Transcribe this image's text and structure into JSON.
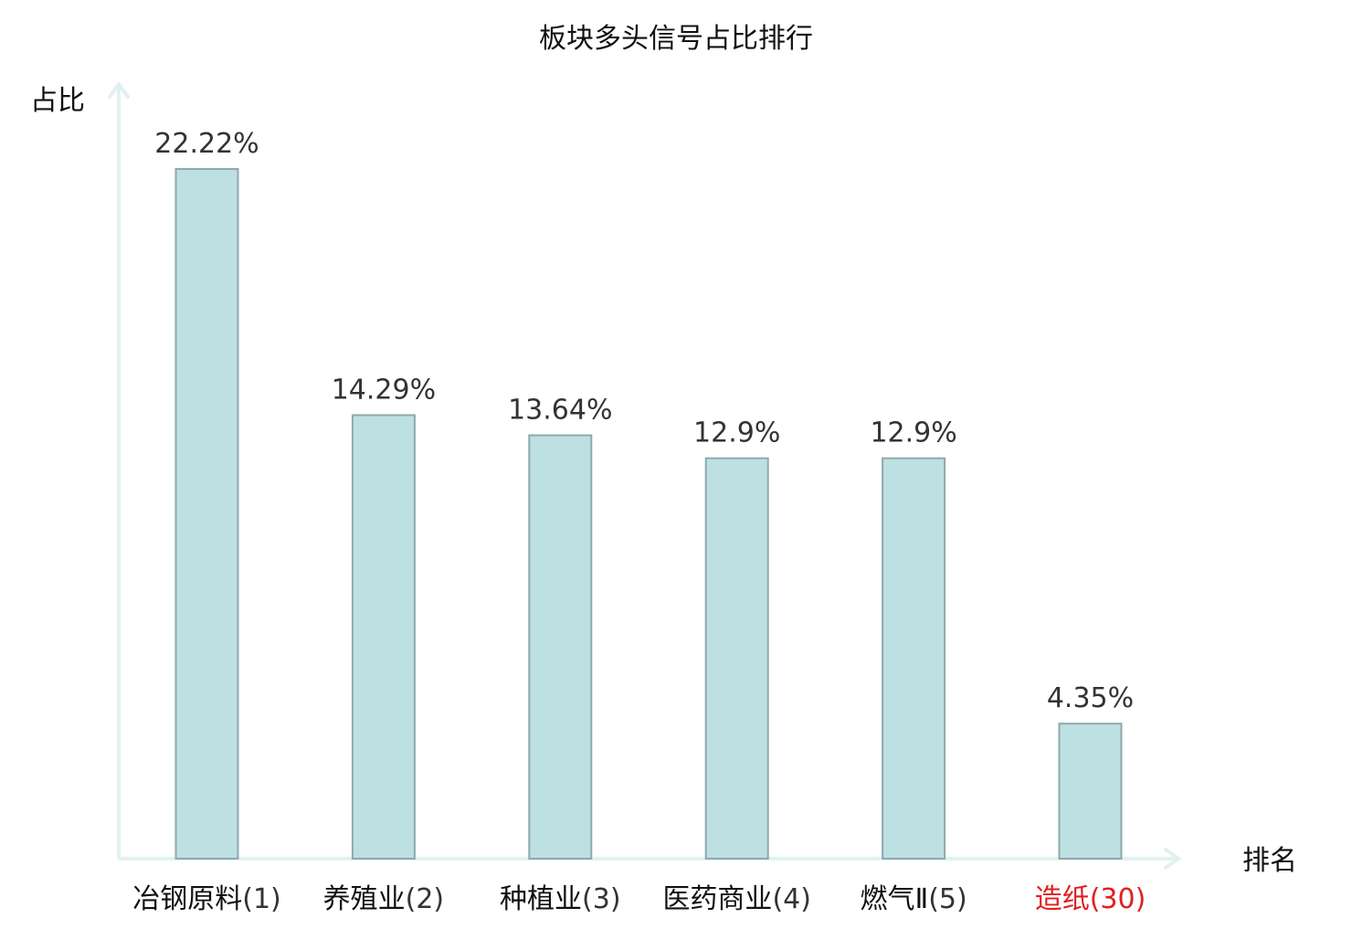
{
  "chart_data": {
    "type": "bar",
    "title": "板块多头信号占比排行",
    "xlabel": "排名",
    "ylabel": "占比",
    "ylim": [
      0,
      25
    ],
    "grid": false,
    "legend": "none",
    "categories": [
      {
        "name": "冶钢原料",
        "rank": "(1)",
        "highlight": false
      },
      {
        "name": "养殖业",
        "rank": "(2)",
        "highlight": false
      },
      {
        "name": "种植业",
        "rank": "(3)",
        "highlight": false
      },
      {
        "name": "医药商业",
        "rank": "(4)",
        "highlight": false
      },
      {
        "name": "燃气Ⅱ",
        "rank": "(5)",
        "highlight": false
      },
      {
        "name": "造纸",
        "rank": "(30)",
        "highlight": true
      }
    ],
    "values": [
      22.22,
      14.29,
      13.64,
      12.9,
      12.9,
      4.35
    ],
    "value_labels": [
      "22.22%",
      "14.29%",
      "13.64%",
      "12.9%",
      "12.9%",
      "4.35%"
    ],
    "colors": {
      "bar_fill": "#bde0e3",
      "bar_stroke": "#8fa9ab",
      "axis": "#e0f2f0",
      "highlight_text": "#e02020",
      "normal_name": "#111111",
      "normal_rank": "#333333",
      "value_text": "#333333"
    }
  }
}
